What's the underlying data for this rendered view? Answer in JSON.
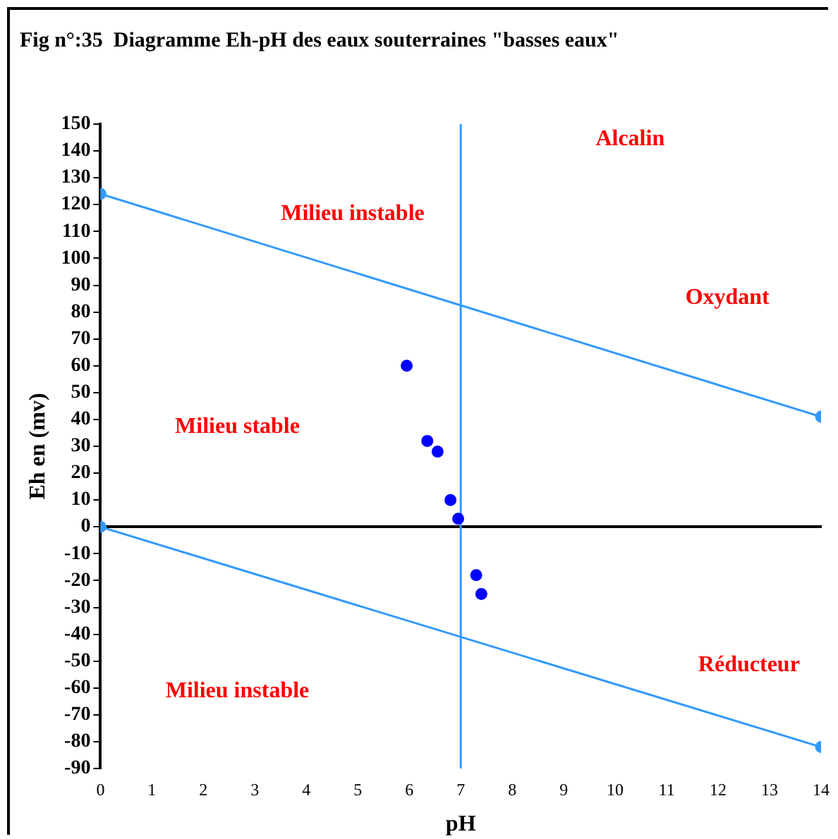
{
  "chart_data": {
    "type": "scatter",
    "title": "Fig n°:35  Diagramme Eh-pH des eaux souterraines \"basses eaux\"",
    "xlabel": "pH",
    "ylabel": "Eh en (mv)",
    "series": [
      {
        "type": "scatter",
        "color": "#0000ff",
        "x": [
          5.95,
          6.35,
          6.55,
          6.8,
          6.95,
          7.3,
          7.4
        ],
        "values": [
          60,
          32,
          28,
          10,
          3,
          -18,
          -25
        ]
      },
      {
        "type": "line",
        "color": "#3399ff",
        "x": [
          0,
          14
        ],
        "values": [
          124,
          41
        ]
      },
      {
        "type": "line",
        "color": "#3399ff",
        "x": [
          0,
          14
        ],
        "values": [
          0,
          -82
        ]
      }
    ],
    "xlim": [
      0,
      14
    ],
    "xticks": [
      0,
      1,
      2,
      3,
      4,
      5,
      6,
      7,
      8,
      9,
      10,
      11,
      12,
      13,
      14
    ],
    "ylim": [
      -90,
      150
    ],
    "yticks": [
      -90,
      -80,
      -70,
      -60,
      -50,
      -40,
      -30,
      -20,
      -10,
      0,
      10,
      20,
      30,
      40,
      50,
      60,
      70,
      80,
      90,
      100,
      110,
      120,
      130,
      140,
      150
    ],
    "ref_lines": [
      {
        "axis": "x",
        "value": 7,
        "color": "#3399ff"
      }
    ],
    "annotations": [
      "Alcalin",
      "Milieu instable",
      "Oxydant",
      "Milieu stable",
      "Réducteur",
      "Milieu instable"
    ],
    "grid": false,
    "legend": false,
    "marker": "circle"
  }
}
